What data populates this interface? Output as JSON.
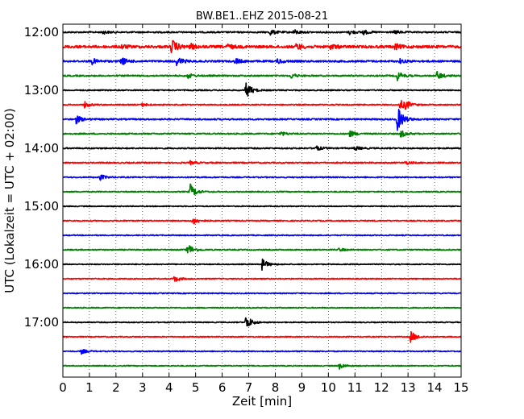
{
  "chart_data": {
    "type": "line",
    "subtype": "seismogram-helicorder",
    "title": "BW.BE1..EHZ 2015-08-21",
    "xlabel": "Zeit  [min]",
    "ylabel": "UTC (Lokalzeit = UTC + 02:00)",
    "xlim": [
      0,
      15
    ],
    "x_ticks": [
      "0",
      "1",
      "2",
      "3",
      "4",
      "5",
      "6",
      "7",
      "8",
      "9",
      "10",
      "11",
      "12",
      "13",
      "14",
      "15"
    ],
    "y_ticks": [
      "12:00",
      "13:00",
      "14:00",
      "15:00",
      "16:00",
      "17:00"
    ],
    "grid": {
      "x_dotted": true
    },
    "colors_cycle": [
      "#000000",
      "#ff0000",
      "#0000ff",
      "#008000"
    ],
    "trace_count": 24,
    "trace_interval_min": 15,
    "series": [
      {
        "start": "12:00",
        "color": "#000000",
        "noise": 0.9,
        "events": [
          {
            "t": 1.5,
            "amp": 2.0
          },
          {
            "t": 7.8,
            "amp": 3.5
          },
          {
            "t": 8.7,
            "amp": 3.0
          },
          {
            "t": 10.8,
            "amp": 2.5
          },
          {
            "t": 11.3,
            "amp": 3.0
          },
          {
            "t": 12.5,
            "amp": 2.0
          }
        ]
      },
      {
        "start": "12:15",
        "color": "#ff0000",
        "noise": 1.6,
        "events": [
          {
            "t": 2.2,
            "amp": 2.5
          },
          {
            "t": 4.1,
            "amp": 9.0
          },
          {
            "t": 4.8,
            "amp": 3.0
          },
          {
            "t": 6.2,
            "amp": 3.0
          },
          {
            "t": 8.8,
            "amp": 4.0
          },
          {
            "t": 10.1,
            "amp": 3.0
          },
          {
            "t": 12.5,
            "amp": 3.5
          }
        ]
      },
      {
        "start": "12:30",
        "color": "#0000ff",
        "noise": 1.1,
        "events": [
          {
            "t": 1.1,
            "amp": 3.5
          },
          {
            "t": 2.2,
            "amp": 5.0
          },
          {
            "t": 4.3,
            "amp": 6.0
          },
          {
            "t": 6.5,
            "amp": 3.5
          },
          {
            "t": 8.1,
            "amp": 3.0
          },
          {
            "t": 12.7,
            "amp": 2.5
          }
        ]
      },
      {
        "start": "12:45",
        "color": "#008000",
        "noise": 0.9,
        "events": [
          {
            "t": 4.7,
            "amp": 3.0
          },
          {
            "t": 8.6,
            "amp": 3.0
          },
          {
            "t": 12.6,
            "amp": 5.5
          },
          {
            "t": 14.1,
            "amp": 5.0
          }
        ]
      },
      {
        "start": "13:00",
        "color": "#000000",
        "noise": 0.7,
        "events": [
          {
            "t": 6.9,
            "amp": 10.0
          }
        ]
      },
      {
        "start": "13:15",
        "color": "#ff0000",
        "noise": 0.7,
        "events": [
          {
            "t": 0.8,
            "amp": 4.0
          },
          {
            "t": 3.0,
            "amp": 2.0
          },
          {
            "t": 12.7,
            "amp": 6.0
          },
          {
            "t": 12.9,
            "amp": 4.0
          }
        ]
      },
      {
        "start": "13:30",
        "color": "#0000ff",
        "noise": 0.9,
        "events": [
          {
            "t": 0.5,
            "amp": 5.0
          },
          {
            "t": 12.6,
            "amp": 16.0
          }
        ]
      },
      {
        "start": "13:45",
        "color": "#008000",
        "noise": 0.8,
        "events": [
          {
            "t": 8.2,
            "amp": 2.5
          },
          {
            "t": 10.8,
            "amp": 4.0
          },
          {
            "t": 12.7,
            "amp": 5.0
          }
        ]
      },
      {
        "start": "14:00",
        "color": "#000000",
        "noise": 0.8,
        "events": [
          {
            "t": 9.5,
            "amp": 3.5
          },
          {
            "t": 11.0,
            "amp": 2.5
          }
        ]
      },
      {
        "start": "14:15",
        "color": "#ff0000",
        "noise": 0.8,
        "events": [
          {
            "t": 4.8,
            "amp": 2.0
          },
          {
            "t": 12.9,
            "amp": 2.0
          }
        ]
      },
      {
        "start": "14:30",
        "color": "#0000ff",
        "noise": 0.7,
        "events": [
          {
            "t": 1.4,
            "amp": 3.5
          }
        ]
      },
      {
        "start": "14:45",
        "color": "#008000",
        "noise": 0.7,
        "events": [
          {
            "t": 4.8,
            "amp": 9.0
          }
        ]
      },
      {
        "start": "15:00",
        "color": "#000000",
        "noise": 0.6,
        "events": []
      },
      {
        "start": "15:15",
        "color": "#ff0000",
        "noise": 0.7,
        "events": [
          {
            "t": 4.9,
            "amp": 5.0
          }
        ]
      },
      {
        "start": "15:30",
        "color": "#0000ff",
        "noise": 0.6,
        "events": []
      },
      {
        "start": "15:45",
        "color": "#008000",
        "noise": 0.7,
        "events": [
          {
            "t": 4.7,
            "amp": 8.0
          },
          {
            "t": 10.4,
            "amp": 2.0
          }
        ]
      },
      {
        "start": "16:00",
        "color": "#000000",
        "noise": 0.6,
        "events": [
          {
            "t": 7.5,
            "amp": 7.0
          }
        ]
      },
      {
        "start": "16:15",
        "color": "#ff0000",
        "noise": 0.6,
        "events": [
          {
            "t": 4.2,
            "amp": 4.0
          }
        ]
      },
      {
        "start": "16:30",
        "color": "#0000ff",
        "noise": 0.6,
        "events": []
      },
      {
        "start": "16:45",
        "color": "#008000",
        "noise": 0.6,
        "events": []
      },
      {
        "start": "17:00",
        "color": "#000000",
        "noise": 0.6,
        "events": [
          {
            "t": 6.9,
            "amp": 9.0
          }
        ]
      },
      {
        "start": "17:15",
        "color": "#ff0000",
        "noise": 0.6,
        "events": [
          {
            "t": 13.1,
            "amp": 7.0
          }
        ]
      },
      {
        "start": "17:30",
        "color": "#0000ff",
        "noise": 0.6,
        "events": [
          {
            "t": 0.7,
            "amp": 3.0
          }
        ]
      },
      {
        "start": "17:45",
        "color": "#008000",
        "noise": 0.6,
        "events": [
          {
            "t": 10.4,
            "amp": 4.0
          }
        ]
      }
    ]
  }
}
